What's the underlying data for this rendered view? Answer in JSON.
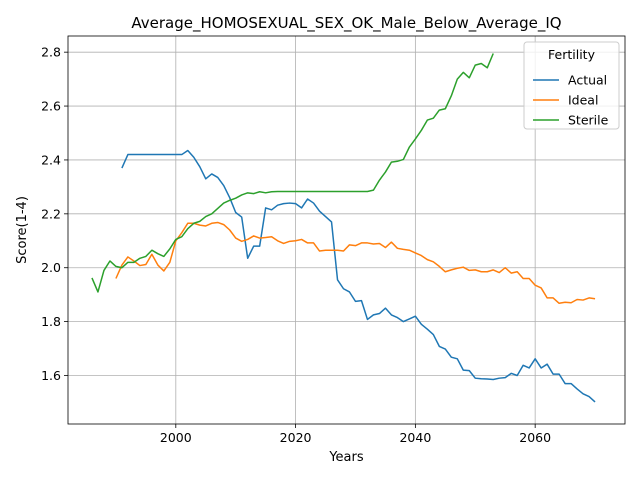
{
  "chart_data": {
    "type": "line",
    "title": "Average_HOMOSEXUAL_SEX_OK_Male_Below_Average_IQ",
    "xlabel": "Years",
    "ylabel": "Score(1-4)",
    "xlim": [
      1982,
      2075
    ],
    "ylim": [
      1.42,
      2.86
    ],
    "xticks": [
      2000,
      2020,
      2040,
      2060
    ],
    "yticks": [
      1.6,
      1.8,
      2.0,
      2.2,
      2.4,
      2.6,
      2.8
    ],
    "grid": true,
    "legend": {
      "title": "Fertility",
      "position": "top-right"
    },
    "series": [
      {
        "name": "Actual",
        "color": "#1f77b4",
        "x": [
          1991,
          1992,
          1993,
          1994,
          1995,
          1996,
          1997,
          1998,
          1999,
          2000,
          2001,
          2002,
          2003,
          2004,
          2005,
          2006,
          2007,
          2008,
          2009,
          2010,
          2011,
          2012,
          2013,
          2014,
          2015,
          2016,
          2017,
          2018,
          2019,
          2020,
          2021,
          2022,
          2023,
          2024,
          2025,
          2026,
          2027,
          2028,
          2029,
          2030,
          2031,
          2032,
          2033,
          2034,
          2035,
          2036,
          2037,
          2038,
          2039,
          2040,
          2041,
          2042,
          2043,
          2044,
          2045,
          2046,
          2047,
          2048,
          2049,
          2050,
          2051,
          2052,
          2053,
          2054,
          2055,
          2056,
          2057,
          2058,
          2059,
          2060,
          2061,
          2062,
          2063,
          2064,
          2065,
          2066,
          2067,
          2068,
          2069,
          2070
        ],
        "values": [
          2.37,
          2.42,
          2.42,
          2.42,
          2.42,
          2.42,
          2.42,
          2.42,
          2.42,
          2.42,
          2.42,
          2.435,
          2.41,
          2.375,
          2.33,
          2.348,
          2.335,
          2.305,
          2.26,
          2.205,
          2.188,
          2.035,
          2.08,
          2.08,
          2.222,
          2.215,
          2.232,
          2.238,
          2.24,
          2.238,
          2.222,
          2.255,
          2.24,
          2.21,
          2.19,
          2.17,
          1.955,
          1.922,
          1.91,
          1.875,
          1.878,
          1.808,
          1.825,
          1.83,
          1.85,
          1.825,
          1.815,
          1.8,
          1.81,
          1.82,
          1.79,
          1.772,
          1.752,
          1.708,
          1.698,
          1.668,
          1.662,
          1.62,
          1.618,
          1.59,
          1.588,
          1.587,
          1.585,
          1.59,
          1.592,
          1.608,
          1.6,
          1.638,
          1.628,
          1.662,
          1.628,
          1.642,
          1.605,
          1.605,
          1.57,
          1.57,
          1.55,
          1.532,
          1.522,
          1.502
        ]
      },
      {
        "name": "Ideal",
        "color": "#ff7f0e",
        "x": [
          1990,
          1991,
          1992,
          1993,
          1994,
          1995,
          1996,
          1997,
          1998,
          1999,
          2000,
          2001,
          2002,
          2003,
          2004,
          2005,
          2006,
          2007,
          2008,
          2009,
          2010,
          2011,
          2012,
          2013,
          2014,
          2015,
          2016,
          2017,
          2018,
          2019,
          2020,
          2021,
          2022,
          2023,
          2024,
          2025,
          2026,
          2027,
          2028,
          2029,
          2030,
          2031,
          2032,
          2033,
          2034,
          2035,
          2036,
          2037,
          2038,
          2039,
          2040,
          2041,
          2042,
          2043,
          2044,
          2045,
          2046,
          2047,
          2048,
          2049,
          2050,
          2051,
          2052,
          2053,
          2054,
          2055,
          2056,
          2057,
          2058,
          2059,
          2060,
          2061,
          2062,
          2063,
          2064,
          2065,
          2066,
          2067,
          2068,
          2069,
          2070
        ],
        "values": [
          1.96,
          2.01,
          2.04,
          2.025,
          2.008,
          2.012,
          2.05,
          2.01,
          1.988,
          2.02,
          2.1,
          2.13,
          2.165,
          2.165,
          2.158,
          2.155,
          2.165,
          2.168,
          2.16,
          2.14,
          2.11,
          2.098,
          2.105,
          2.118,
          2.11,
          2.112,
          2.115,
          2.1,
          2.09,
          2.098,
          2.1,
          2.105,
          2.092,
          2.092,
          2.062,
          2.065,
          2.065,
          2.065,
          2.062,
          2.085,
          2.082,
          2.092,
          2.092,
          2.088,
          2.09,
          2.075,
          2.095,
          2.072,
          2.068,
          2.065,
          2.055,
          2.045,
          2.03,
          2.022,
          2.005,
          1.985,
          1.992,
          1.998,
          2.002,
          1.99,
          1.992,
          1.985,
          1.985,
          1.992,
          1.982,
          2.0,
          1.98,
          1.985,
          1.96,
          1.96,
          1.935,
          1.925,
          1.888,
          1.888,
          1.868,
          1.872,
          1.87,
          1.882,
          1.88,
          1.888,
          1.885
        ]
      },
      {
        "name": "Sterile",
        "color": "#2ca02c",
        "x": [
          1986,
          1987,
          1988,
          1989,
          1990,
          1991,
          1992,
          1993,
          1994,
          1995,
          1996,
          1997,
          1998,
          1999,
          2000,
          2001,
          2002,
          2003,
          2004,
          2005,
          2006,
          2007,
          2008,
          2009,
          2010,
          2011,
          2012,
          2013,
          2014,
          2015,
          2016,
          2017,
          2018,
          2019,
          2020,
          2021,
          2022,
          2023,
          2024,
          2025,
          2026,
          2027,
          2028,
          2029,
          2030,
          2031,
          2032,
          2033,
          2034,
          2035,
          2036,
          2037,
          2038,
          2039,
          2040,
          2041,
          2042,
          2043,
          2044,
          2045,
          2046,
          2047,
          2048,
          2049,
          2050,
          2051,
          2052,
          2053
        ],
        "values": [
          1.962,
          1.91,
          1.99,
          2.025,
          2.005,
          2.0,
          2.02,
          2.02,
          2.035,
          2.042,
          2.065,
          2.052,
          2.042,
          2.07,
          2.105,
          2.115,
          2.145,
          2.165,
          2.172,
          2.19,
          2.2,
          2.22,
          2.24,
          2.25,
          2.258,
          2.27,
          2.278,
          2.275,
          2.282,
          2.278,
          2.282,
          2.283,
          2.283,
          2.283,
          2.283,
          2.283,
          2.283,
          2.283,
          2.283,
          2.283,
          2.283,
          2.283,
          2.283,
          2.283,
          2.283,
          2.283,
          2.283,
          2.288,
          2.325,
          2.355,
          2.392,
          2.395,
          2.402,
          2.448,
          2.478,
          2.51,
          2.548,
          2.555,
          2.585,
          2.59,
          2.638,
          2.7,
          2.725,
          2.705,
          2.752,
          2.758,
          2.742,
          2.795
        ]
      }
    ]
  }
}
